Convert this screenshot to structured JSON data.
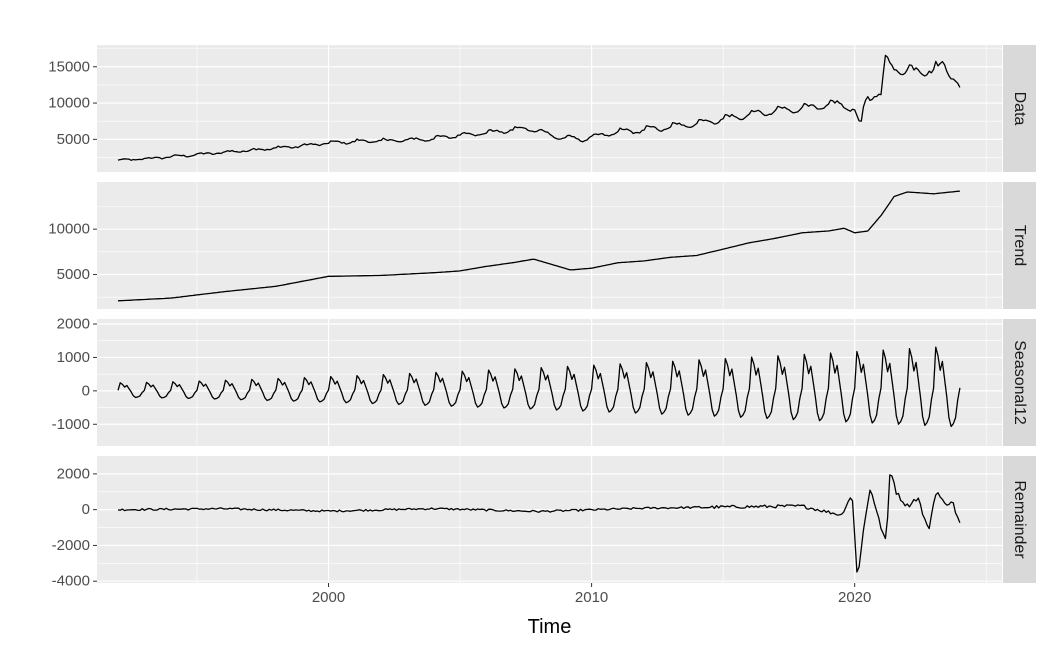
{
  "chart_data": {
    "type": "line",
    "title": "",
    "xlabel": "Time",
    "x_axis": {
      "range": [
        1991.2,
        2025.6
      ],
      "ticks": [
        2000,
        2010,
        2020
      ],
      "tick_labels": [
        "2000",
        "2010",
        "2020"
      ],
      "minor_ticks": [
        1995,
        2005,
        2015,
        2025
      ]
    },
    "colors": {
      "panel_bg": "#ebebeb",
      "strip_bg": "#d9d9d9",
      "grid_major": "#ffffff",
      "line": "#000000"
    },
    "panels": [
      {
        "id": "data",
        "strip_label": "Data",
        "ylim": [
          500,
          18000
        ],
        "y_ticks": [
          5000,
          10000,
          15000
        ],
        "y_tick_labels": [
          "5000",
          "10000",
          "15000"
        ],
        "y_minor_ticks": [
          2500,
          7500,
          12500,
          17500
        ],
        "series_type": "data",
        "x": [
          1992.0,
          1993.0,
          1994.0,
          1995.0,
          1996.0,
          1997.0,
          1998.0,
          1999.0,
          2000.0,
          2001.0,
          2002.0,
          2003.0,
          2004.0,
          2005.0,
          2006.0,
          2007.0,
          2007.5,
          2008.0,
          2008.5,
          2009.0,
          2009.5,
          2010.0,
          2011.0,
          2012.0,
          2013.0,
          2014.0,
          2015.0,
          2016.0,
          2017.0,
          2018.0,
          2019.0,
          2019.5,
          2020.0,
          2020.2,
          2020.4,
          2020.7,
          2021.0,
          2021.2,
          2021.4,
          2022.0,
          2023.0,
          2023.4,
          2023.7,
          2024.0
        ],
        "values": [
          2100,
          2300,
          2600,
          2900,
          3200,
          3500,
          3800,
          4100,
          4500,
          4700,
          4800,
          4900,
          5100,
          5600,
          5900,
          6300,
          6500,
          6200,
          5500,
          5200,
          5000,
          5300,
          6000,
          6300,
          6700,
          7200,
          7800,
          8400,
          8900,
          9300,
          9700,
          9900,
          9100,
          6200,
          10500,
          11000,
          11200,
          16800,
          14800,
          14500,
          14600,
          15200,
          14000,
          12300
        ]
      },
      {
        "id": "trend",
        "strip_label": "Trend",
        "ylim": [
          1200,
          15200
        ],
        "y_ticks": [
          5000,
          10000
        ],
        "y_tick_labels": [
          "5000",
          "10000"
        ],
        "y_minor_ticks": [
          2500,
          7500,
          12500
        ],
        "series_type": "trend",
        "x": [
          1992.0,
          1994.0,
          1996.0,
          1998.0,
          2000.0,
          2002.0,
          2004.0,
          2005.0,
          2006.0,
          2007.0,
          2007.8,
          2008.5,
          2009.2,
          2010.0,
          2011.0,
          2012.0,
          2013.0,
          2014.0,
          2015.0,
          2016.0,
          2017.0,
          2018.0,
          2019.0,
          2019.6,
          2020.0,
          2020.5,
          2021.0,
          2021.5,
          2022.0,
          2023.0,
          2024.0
        ],
        "values": [
          2100,
          2400,
          3100,
          3700,
          4800,
          4900,
          5200,
          5400,
          5900,
          6300,
          6700,
          6100,
          5500,
          5700,
          6300,
          6500,
          6900,
          7100,
          7800,
          8500,
          9000,
          9600,
          9800,
          10100,
          9600,
          9800,
          11500,
          13600,
          14100,
          13900,
          14200
        ]
      },
      {
        "id": "seasonal",
        "strip_label": "Seasonal12",
        "ylim": [
          -1650,
          2150
        ],
        "y_ticks": [
          -1000,
          0,
          1000,
          2000
        ],
        "y_tick_labels": [
          "-1000",
          "0",
          "1000",
          "2000"
        ],
        "y_minor_ticks": [
          -500,
          500,
          1500
        ],
        "series_type": "seasonal",
        "pattern": [
          0.05,
          0.75,
          0.6,
          0.35,
          0.5,
          0.2,
          -0.1,
          -0.45,
          -0.6,
          -0.55,
          -0.45,
          -0.15
        ],
        "amp_start": 320,
        "amp_end": 1800,
        "start_year": 1992.0,
        "end_year": 2024.0
      },
      {
        "id": "remainder",
        "strip_label": "Remainder",
        "ylim": [
          -4100,
          3000
        ],
        "y_ticks": [
          -4000,
          -2000,
          0,
          2000
        ],
        "y_tick_labels": [
          "-4000",
          "-2000",
          "0",
          "2000"
        ],
        "y_minor_ticks": [
          -3000,
          -1000,
          1000
        ],
        "series_type": "remainder",
        "x": [
          1992.0,
          1996.0,
          2000.0,
          2004.0,
          2008.0,
          2012.0,
          2015.0,
          2018.0,
          2019.5,
          2019.9,
          2020.1,
          2020.3,
          2020.6,
          2020.9,
          2021.2,
          2021.35,
          2021.6,
          2022.0,
          2022.4,
          2022.8,
          2023.1,
          2023.4,
          2023.7,
          2024.0
        ],
        "values": [
          0,
          50,
          -80,
          60,
          -100,
          80,
          150,
          200,
          -300,
          900,
          -3900,
          -1500,
          1300,
          -500,
          -1900,
          2400,
          900,
          200,
          700,
          -1200,
          1100,
          300,
          500,
          -800
        ]
      }
    ]
  }
}
